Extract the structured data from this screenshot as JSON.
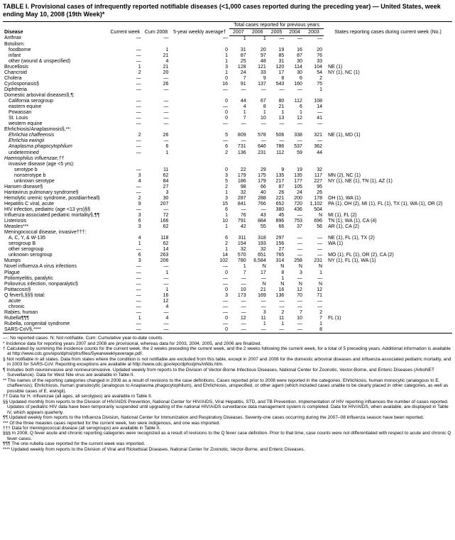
{
  "title": "TABLE I. Provisional cases of infrequently reported notifiable diseases (<1,000 cases reported during the preceding year) — United States, week ending May 10, 2008 (19th Week)*",
  "headers": {
    "disease": "Disease",
    "current_week": "Current week",
    "cum_2008": "Cum 2008",
    "five_year": "5-year weekly average†",
    "years_group": "Total cases reported for previous years",
    "y2007": "2007",
    "y2006": "2006",
    "y2005": "2005",
    "y2004": "2004",
    "y2003": "2003",
    "states": "States reporting cases during current week (No.)"
  },
  "rows": [
    {
      "n": "Anthrax",
      "cw": "—",
      "cum": "—",
      "avg": "—",
      "y7": "1",
      "y6": "1",
      "y5": "—",
      "y4": "—",
      "y3": "—",
      "st": ""
    },
    {
      "n": "Botulism:",
      "cw": "",
      "cum": "",
      "avg": "",
      "y7": "",
      "y6": "",
      "y5": "",
      "y4": "",
      "y3": "",
      "st": ""
    },
    {
      "n": "foodborne",
      "i": 1,
      "cw": "—",
      "cum": "1",
      "avg": "0",
      "y7": "31",
      "y6": "20",
      "y5": "19",
      "y4": "16",
      "y3": "20",
      "st": ""
    },
    {
      "n": "infant",
      "i": 1,
      "cw": "—",
      "cum": "21",
      "avg": "1",
      "y7": "87",
      "y6": "97",
      "y5": "85",
      "y4": "87",
      "y3": "76",
      "st": ""
    },
    {
      "n": "other (wound & unspecified)",
      "i": 1,
      "cw": "—",
      "cum": "4",
      "avg": "1",
      "y7": "25",
      "y6": "48",
      "y5": "31",
      "y4": "30",
      "y3": "33",
      "st": ""
    },
    {
      "n": "Brucellosis",
      "cw": "1",
      "cum": "21",
      "avg": "3",
      "y7": "128",
      "y6": "121",
      "y5": "120",
      "y4": "114",
      "y3": "104",
      "st": "NE (1)"
    },
    {
      "n": "Chancroid",
      "cw": "2",
      "cum": "20",
      "avg": "1",
      "y7": "24",
      "y6": "33",
      "y5": "17",
      "y4": "30",
      "y3": "54",
      "st": "NY (1), NC (1)"
    },
    {
      "n": "Cholera",
      "cw": "—",
      "cum": "—",
      "avg": "0",
      "y7": "7",
      "y6": "9",
      "y5": "8",
      "y4": "6",
      "y3": "2",
      "st": ""
    },
    {
      "n": "Cyclosporiasis§",
      "cw": "—",
      "cum": "26",
      "avg": "16",
      "y7": "91",
      "y6": "137",
      "y5": "543",
      "y4": "160",
      "y3": "75",
      "st": ""
    },
    {
      "n": "Diphtheria",
      "cw": "—",
      "cum": "—",
      "avg": "—",
      "y7": "—",
      "y6": "—",
      "y5": "—",
      "y4": "—",
      "y3": "1",
      "st": ""
    },
    {
      "n": "Domestic arboviral diseases§,¶:",
      "cw": "",
      "cum": "",
      "avg": "",
      "y7": "",
      "y6": "",
      "y5": "",
      "y4": "",
      "y3": "",
      "st": ""
    },
    {
      "n": "California serogroup",
      "i": 1,
      "cw": "—",
      "cum": "—",
      "avg": "0",
      "y7": "44",
      "y6": "67",
      "y5": "80",
      "y4": "112",
      "y3": "108",
      "st": ""
    },
    {
      "n": "eastern equine",
      "i": 1,
      "cw": "—",
      "cum": "—",
      "avg": "—",
      "y7": "4",
      "y6": "8",
      "y5": "21",
      "y4": "6",
      "y3": "14",
      "st": ""
    },
    {
      "n": "Powassan",
      "i": 1,
      "cw": "—",
      "cum": "—",
      "avg": "0",
      "y7": "1",
      "y6": "1",
      "y5": "1",
      "y4": "1",
      "y3": "—",
      "st": ""
    },
    {
      "n": "St. Louis",
      "i": 1,
      "cw": "—",
      "cum": "—",
      "avg": "0",
      "y7": "7",
      "y6": "10",
      "y5": "13",
      "y4": "12",
      "y3": "41",
      "st": ""
    },
    {
      "n": "western equine",
      "i": 1,
      "cw": "—",
      "cum": "—",
      "avg": "—",
      "y7": "—",
      "y6": "—",
      "y5": "—",
      "y4": "—",
      "y3": "—",
      "st": ""
    },
    {
      "n": "Ehrlichiosis/Anaplasmosis§,**:",
      "cw": "",
      "cum": "",
      "avg": "",
      "y7": "",
      "y6": "",
      "y5": "",
      "y4": "",
      "y3": "",
      "st": ""
    },
    {
      "n": "Ehrlichia chaffeensis",
      "i": 1,
      "it": true,
      "cw": "2",
      "cum": "26",
      "avg": "5",
      "y7": "809",
      "y6": "578",
      "y5": "506",
      "y4": "338",
      "y3": "321",
      "st": "NE (1), MD (1)"
    },
    {
      "n": "Ehrlichia ewingii",
      "i": 1,
      "it": true,
      "cw": "—",
      "cum": "—",
      "avg": "—",
      "y7": "—",
      "y6": "—",
      "y5": "—",
      "y4": "—",
      "y3": "—",
      "st": ""
    },
    {
      "n": "Anaplasma phagocytophilum",
      "i": 1,
      "it": true,
      "cw": "—",
      "cum": "6",
      "avg": "6",
      "y7": "731",
      "y6": "646",
      "y5": "786",
      "y4": "537",
      "y3": "362",
      "st": ""
    },
    {
      "n": "undetermined",
      "i": 1,
      "cw": "—",
      "cum": "1",
      "avg": "2",
      "y7": "136",
      "y6": "231",
      "y5": "112",
      "y4": "59",
      "y3": "44",
      "st": ""
    },
    {
      "n": "Haemophilus influenzae,††",
      "it": true,
      "cw": "",
      "cum": "",
      "avg": "",
      "y7": "",
      "y6": "",
      "y5": "",
      "y4": "",
      "y3": "",
      "st": ""
    },
    {
      "n": "invasive disease (age <5 yrs):",
      "i": 1,
      "cw": "",
      "cum": "",
      "avg": "",
      "y7": "",
      "y6": "",
      "y5": "",
      "y4": "",
      "y3": "",
      "st": ""
    },
    {
      "n": "serotype b",
      "i": 2,
      "cw": "—",
      "cum": "11",
      "avg": "0",
      "y7": "22",
      "y6": "29",
      "y5": "9",
      "y4": "19",
      "y3": "32",
      "st": ""
    },
    {
      "n": "nonserotype b",
      "i": 2,
      "cw": "3",
      "cum": "62",
      "avg": "3",
      "y7": "179",
      "y6": "175",
      "y5": "135",
      "y4": "135",
      "y3": "117",
      "st": "MN (2), NC (1)"
    },
    {
      "n": "unknown serotype",
      "i": 2,
      "cw": "4",
      "cum": "84",
      "avg": "5",
      "y7": "186",
      "y6": "179",
      "y5": "217",
      "y4": "177",
      "y3": "227",
      "st": "NY (1), NE (1), TN (1), AZ (1)"
    },
    {
      "n": "Hansen disease§",
      "cw": "—",
      "cum": "27",
      "avg": "2",
      "y7": "98",
      "y6": "66",
      "y5": "87",
      "y4": "105",
      "y3": "95",
      "st": ""
    },
    {
      "n": "Hantavirus pulmonary syndrome§",
      "cw": "—",
      "cum": "3",
      "avg": "1",
      "y7": "32",
      "y6": "40",
      "y5": "26",
      "y4": "24",
      "y3": "26",
      "st": ""
    },
    {
      "n": "Hemolytic uremic syndrome, postdiarrheal§",
      "cw": "2",
      "cum": "30",
      "avg": "3",
      "y7": "287",
      "y6": "288",
      "y5": "221",
      "y4": "200",
      "y3": "178",
      "st": "OH (1), WA (1)"
    },
    {
      "n": "Hepatitis C viral, acute",
      "cw": "9",
      "cum": "207",
      "avg": "15",
      "y7": "841",
      "y6": "766",
      "y5": "652",
      "y4": "720",
      "y3": "1,102",
      "st": "PA (1), OH (2), MI (1), FL (1), TX (1), WA (1), OR (2)"
    },
    {
      "n": "HIV infection, pediatric (age <13 yrs)§§",
      "cw": "—",
      "cum": "—",
      "avg": "6",
      "y7": "—",
      "y6": "—",
      "y5": "380",
      "y4": "436",
      "y3": "504",
      "st": ""
    },
    {
      "n": "Influenza-associated pediatric mortality§,¶¶",
      "cw": "3",
      "cum": "72",
      "avg": "1",
      "y7": "76",
      "y6": "43",
      "y5": "45",
      "y4": "—",
      "y3": "N",
      "st": "MI (1), FL (2)"
    },
    {
      "n": "Listeriosis",
      "cw": "6",
      "cum": "166",
      "avg": "10",
      "y7": "791",
      "y6": "884",
      "y5": "896",
      "y4": "753",
      "y3": "696",
      "st": "TN (1), WA (1), CA (4)"
    },
    {
      "n": "Measles***",
      "cw": "3",
      "cum": "62",
      "avg": "1",
      "y7": "42",
      "y6": "55",
      "y5": "66",
      "y4": "37",
      "y3": "56",
      "st": "AR (1), CA (2)"
    },
    {
      "n": "Meningococcal disease, invasive†††:",
      "cw": "",
      "cum": "",
      "avg": "",
      "y7": "",
      "y6": "",
      "y5": "",
      "y4": "",
      "y3": "",
      "st": ""
    },
    {
      "n": "A, C, Y, & W-135",
      "i": 1,
      "cw": "4",
      "cum": "118",
      "avg": "6",
      "y7": "311",
      "y6": "318",
      "y5": "297",
      "y4": "—",
      "y3": "—",
      "st": "NE (1), FL (1), TX (2)"
    },
    {
      "n": "serogroup B",
      "i": 1,
      "cw": "1",
      "cum": "62",
      "avg": "2",
      "y7": "154",
      "y6": "193",
      "y5": "156",
      "y4": "—",
      "y3": "—",
      "st": "WA (1)"
    },
    {
      "n": "other serogroup",
      "i": 1,
      "cw": "—",
      "cum": "14",
      "avg": "1",
      "y7": "32",
      "y6": "32",
      "y5": "27",
      "y4": "—",
      "y3": "—",
      "st": ""
    },
    {
      "n": "unknown serogroup",
      "i": 1,
      "cw": "6",
      "cum": "263",
      "avg": "14",
      "y7": "570",
      "y6": "651",
      "y5": "765",
      "y4": "—",
      "y3": "—",
      "st": "MO (1), FL (1), OR (2), CA (2)"
    },
    {
      "n": "Mumps",
      "cw": "3",
      "cum": "206",
      "avg": "102",
      "y7": "780",
      "y6": "6,584",
      "y5": "314",
      "y4": "258",
      "y3": "231",
      "st": "NY (1), FL (1), WA (1)"
    },
    {
      "n": "Novel influenza A virus infections",
      "cw": "—",
      "cum": "—",
      "avg": "—",
      "y7": "1",
      "y6": "N",
      "y5": "N",
      "y4": "N",
      "y3": "N",
      "st": ""
    },
    {
      "n": "Plague",
      "cw": "—",
      "cum": "1",
      "avg": "0",
      "y7": "7",
      "y6": "17",
      "y5": "8",
      "y4": "3",
      "y3": "1",
      "st": ""
    },
    {
      "n": "Poliomyelitis, paralytic",
      "cw": "—",
      "cum": "—",
      "avg": "—",
      "y7": "—",
      "y6": "—",
      "y5": "1",
      "y4": "—",
      "y3": "—",
      "st": ""
    },
    {
      "n": "Poliovirus infection, nonparalytic§",
      "cw": "—",
      "cum": "—",
      "avg": "—",
      "y7": "—",
      "y6": "N",
      "y5": "N",
      "y4": "N",
      "y3": "N",
      "st": ""
    },
    {
      "n": "Psittacosis§",
      "cw": "—",
      "cum": "1",
      "avg": "0",
      "y7": "10",
      "y6": "21",
      "y5": "16",
      "y4": "12",
      "y3": "12",
      "st": ""
    },
    {
      "n": "Q fever§,§§§ total:",
      "cw": "—",
      "cum": "16",
      "avg": "3",
      "y7": "173",
      "y6": "169",
      "y5": "136",
      "y4": "70",
      "y3": "71",
      "st": ""
    },
    {
      "n": "acute",
      "i": 1,
      "cw": "—",
      "cum": "12",
      "avg": "—",
      "y7": "—",
      "y6": "—",
      "y5": "—",
      "y4": "—",
      "y3": "—",
      "st": ""
    },
    {
      "n": "chronic",
      "i": 1,
      "cw": "—",
      "cum": "4",
      "avg": "—",
      "y7": "—",
      "y6": "—",
      "y5": "—",
      "y4": "—",
      "y3": "—",
      "st": ""
    },
    {
      "n": "Rabies, human",
      "cw": "—",
      "cum": "—",
      "avg": "—",
      "y7": "—",
      "y6": "3",
      "y5": "2",
      "y4": "7",
      "y3": "2",
      "st": ""
    },
    {
      "n": "Rubella¶¶¶",
      "cw": "1",
      "cum": "4",
      "avg": "0",
      "y7": "12",
      "y6": "11",
      "y5": "11",
      "y4": "10",
      "y3": "7",
      "st": "FL (1)"
    },
    {
      "n": "Rubella, congenital syndrome",
      "cw": "—",
      "cum": "—",
      "avg": "—",
      "y7": "—",
      "y6": "1",
      "y5": "1",
      "y4": "—",
      "y3": "1",
      "st": ""
    },
    {
      "n": "SARS-CoV§,****",
      "cw": "—",
      "cum": "—",
      "avg": "0",
      "y7": "—",
      "y6": "—",
      "y5": "—",
      "y4": "—",
      "y3": "8",
      "st": ""
    }
  ],
  "legend": "—: No reported cases.    N: Not notifiable.    Cum: Cumulative year-to-date counts.",
  "footnotes": [
    "* Incidence data for reporting years 2007 and 2008 are provisional, whereas data for 2003, 2004, 2005, and 2006 are finalized.",
    "† Calculated by summing the incidence counts for the current week, the 2 weeks preceding the current week, and the 2 weeks following the current week, for a total of 5 preceding years. Additional information is available at http://www.cdc.gov/epo/dphsi/phs/files/5yearweeklyaverage.pdf.",
    "§ Not notifiable in all states. Data from states where the condition is not notifiable are excluded from this table, except in 2007 and 2008 for the domestic arboviral diseases and influenza-associated pediatric mortality, and in 2003 for SARS-CoV. Reporting exceptions are available at http://www.cdc.gov/epo/dphsi/phs/infdis.htm.",
    "¶ Includes both neuroinvasive and nonneuroinvasive. Updated weekly from reports to the Division of Vector-Borne Infectious Diseases, National Center for Zoonotic, Vector-Borne, and Enteric Diseases (ArboNET Surveillance). Data for West Nile virus are available in Table II.",
    "** The names of the reporting categories changed in 2008 as a result of revisions to the case definitions. Cases reported prior to 2008 were reported in the categories: Ehrlichiosis, human monocytic (analogous to E. chaffeensis); Ehrlichiosis, human granulocytic (analogous to Anaplasma phagocytophilum), and Ehrlichiosis, unspecified, or other agent (which included cases unable to be clearly placed in other categories, as well as possible cases of E. ewingii).",
    "†† Data for H. influenzae (all ages, all serotypes) are available in Table II.",
    "§§ Updated monthly from reports to the Division of HIV/AIDS Prevention, National Center for HIV/AIDS, Viral Hepatitis, STD, and TB Prevention. Implementation of HIV reporting influences the number of cases reported. Updates of pediatric HIV data have been temporarily suspended until upgrading of the national HIV/AIDS surveillance data management system is completed. Data for HIV/AIDS, when available, are displayed in Table IV, which appears quarterly.",
    "¶¶ Updated weekly from reports to the Influenza Division, National Center for Immunization and Respiratory Diseases. Seventy-one cases occurring during the 2007–08 influenza season have been reported.",
    "*** Of the three measles cases reported for the current week, two were indigenous, and one was imported.",
    "††† Data for meningococcal disease (all serogroups) are available in Table II.",
    "§§§ In 2008, Q fever acute and chronic reporting categories were recognized as a result of revisions to the Q fever case definition. Prior to that time, case counts were not differentiated with respect to acute and chronic Q fever cases.",
    "¶¶¶ The one rubella case reported for the current week was imported.",
    "**** Updated weekly from reports to the Division of Viral and Rickettsial Diseases, National Center for Zoonotic, Vector-Borne, and Enteric Diseases."
  ]
}
